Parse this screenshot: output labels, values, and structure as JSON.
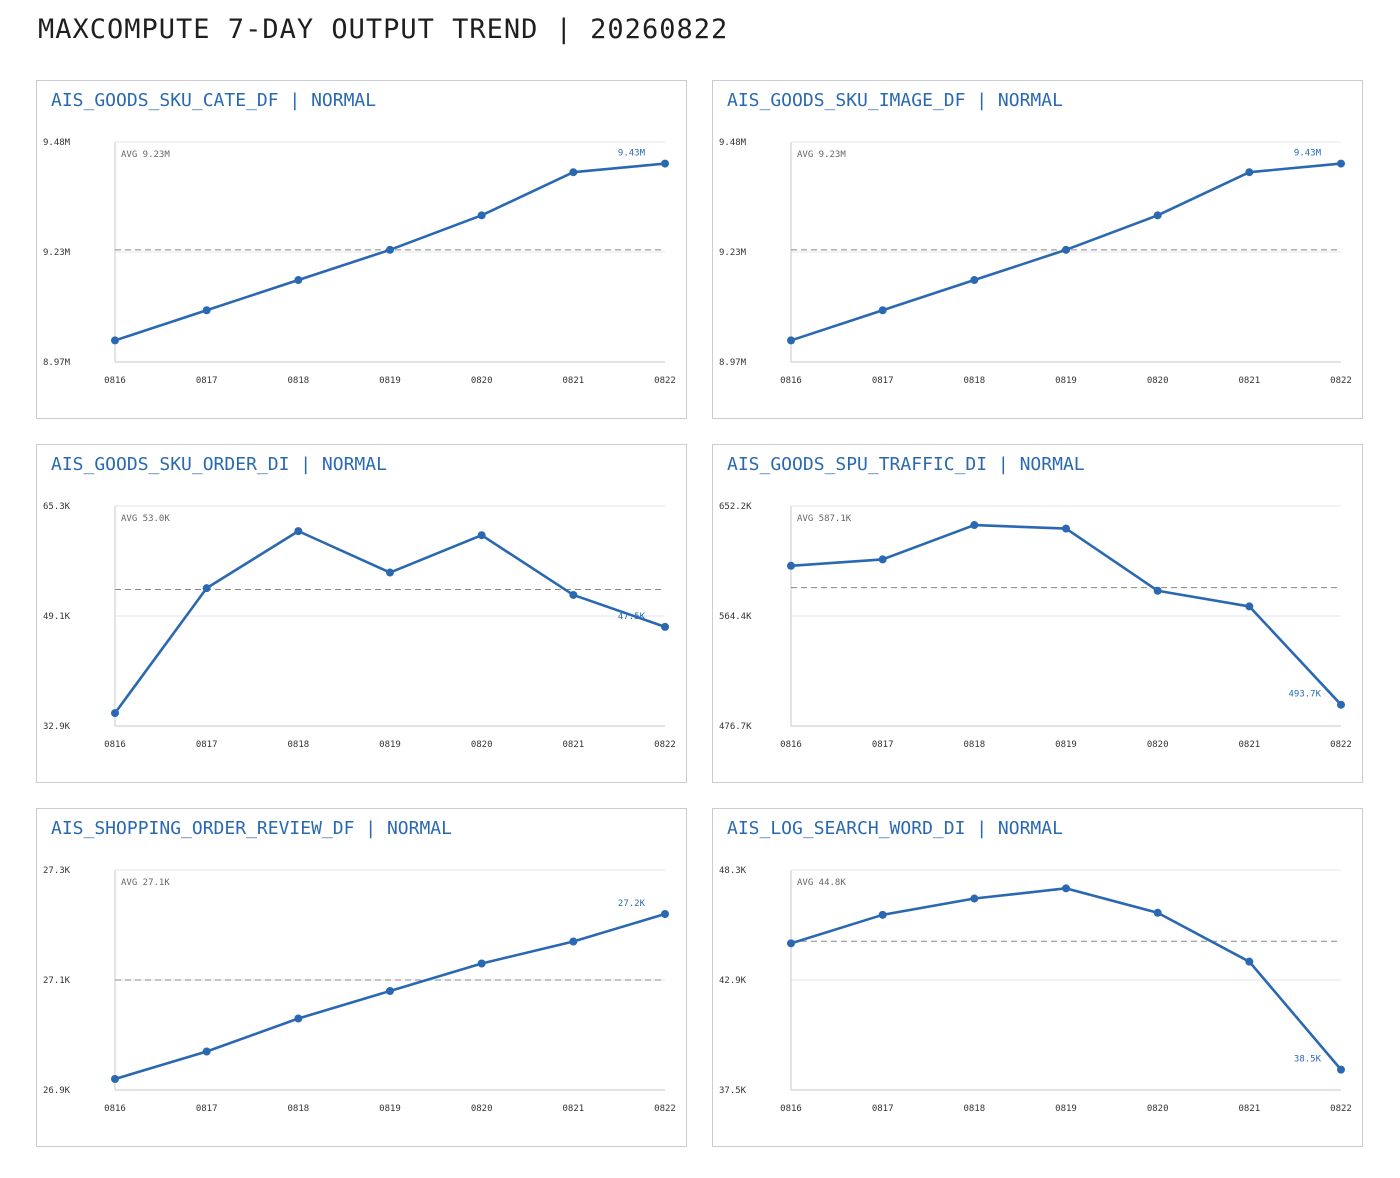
{
  "page": {
    "title": "MAXCOMPUTE 7-DAY OUTPUT TREND | 20260822"
  },
  "colors": {
    "line": "#2a69b2",
    "title": "#2a69b2",
    "grid": "#e3e5e8",
    "avg_line": "#888888"
  },
  "chart_data": [
    {
      "type": "line",
      "title": "AIS_GOODS_SKU_CATE_DF | NORMAL",
      "categories": [
        "0816",
        "0817",
        "0818",
        "0819",
        "0820",
        "0821",
        "0822"
      ],
      "values": [
        9.02,
        9.09,
        9.16,
        9.23,
        9.31,
        9.41,
        9.43
      ],
      "ylim": [
        8.97,
        9.48
      ],
      "yticks": [
        "9.48M",
        "9.23M",
        "8.97M"
      ],
      "avg": 9.23,
      "avg_label": "AVG 9.23M",
      "end_label": "9.43M",
      "grid": true
    },
    {
      "type": "line",
      "title": "AIS_GOODS_SKU_IMAGE_DF | NORMAL",
      "categories": [
        "0816",
        "0817",
        "0818",
        "0819",
        "0820",
        "0821",
        "0822"
      ],
      "values": [
        9.02,
        9.09,
        9.16,
        9.23,
        9.31,
        9.41,
        9.43
      ],
      "ylim": [
        8.97,
        9.48
      ],
      "yticks": [
        "9.48M",
        "9.23M",
        "8.97M"
      ],
      "avg": 9.23,
      "avg_label": "AVG 9.23M",
      "end_label": "9.43M",
      "grid": true
    },
    {
      "type": "line",
      "title": "AIS_GOODS_SKU_ORDER_DI | NORMAL",
      "categories": [
        "0816",
        "0817",
        "0818",
        "0819",
        "0820",
        "0821",
        "0822"
      ],
      "values": [
        34.8,
        53.2,
        61.6,
        55.5,
        61.0,
        52.2,
        47.5
      ],
      "ylim": [
        32.9,
        65.3
      ],
      "yticks": [
        "65.3K",
        "49.1K",
        "32.9K"
      ],
      "avg": 53.0,
      "avg_label": "AVG 53.0K",
      "end_label": "47.5K",
      "grid": true
    },
    {
      "type": "line",
      "title": "AIS_GOODS_SPU_TRAFFIC_DI | NORMAL",
      "categories": [
        "0816",
        "0817",
        "0818",
        "0819",
        "0820",
        "0821",
        "0822"
      ],
      "values": [
        604.5,
        609.6,
        637.0,
        634.2,
        584.6,
        572.1,
        493.7
      ],
      "ylim": [
        476.7,
        652.2
      ],
      "yticks": [
        "652.2K",
        "564.4K",
        "476.7K"
      ],
      "avg": 587.1,
      "avg_label": "AVG 587.1K",
      "end_label": "493.7K",
      "grid": true
    },
    {
      "type": "line",
      "title": "AIS_SHOPPING_ORDER_REVIEW_DF | NORMAL",
      "categories": [
        "0816",
        "0817",
        "0818",
        "0819",
        "0820",
        "0821",
        "0822"
      ],
      "values": [
        26.92,
        26.97,
        27.03,
        27.08,
        27.13,
        27.17,
        27.22
      ],
      "ylim": [
        26.9,
        27.3
      ],
      "yticks": [
        "27.3K",
        "27.1K",
        "26.9K"
      ],
      "avg": 27.1,
      "avg_label": "AVG 27.1K",
      "end_label": "27.2K",
      "grid": true
    },
    {
      "type": "line",
      "title": "AIS_LOG_SEARCH_WORD_DI | NORMAL",
      "categories": [
        "0816",
        "0817",
        "0818",
        "0819",
        "0820",
        "0821",
        "0822"
      ],
      "values": [
        44.7,
        46.1,
        46.9,
        47.4,
        46.2,
        43.8,
        38.5
      ],
      "ylim": [
        37.5,
        48.3
      ],
      "yticks": [
        "48.3K",
        "42.9K",
        "37.5K"
      ],
      "avg": 44.8,
      "avg_label": "AVG 44.8K",
      "end_label": "38.5K",
      "grid": true
    }
  ]
}
